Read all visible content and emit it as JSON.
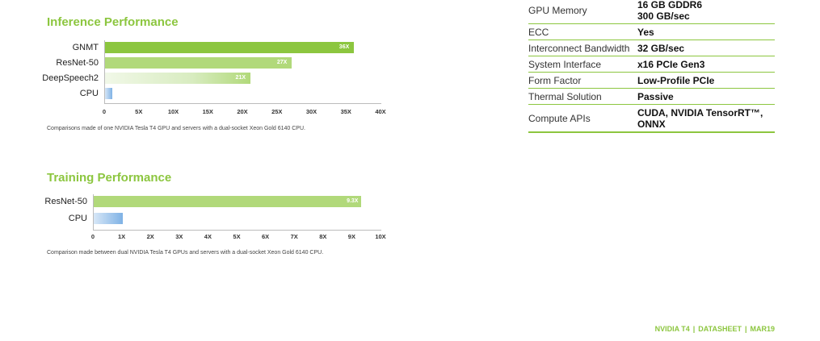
{
  "charts": [
    {
      "title": "Inference Performance",
      "note": "Comparisons made of one NVIDIA Tesla T4 GPU and servers with a dual-socket Xeon Gold 6140 CPU.",
      "chart_data": {
        "type": "bar",
        "orientation": "horizontal",
        "categories": [
          "GNMT",
          "ResNet-50",
          "DeepSpeech2",
          "CPU"
        ],
        "values": [
          36,
          27,
          21,
          1
        ],
        "value_labels": [
          "36X",
          "27X",
          "21X",
          ""
        ],
        "xlim": [
          0,
          40
        ],
        "ticks": [
          "0",
          "5X",
          "10X",
          "15X",
          "20X",
          "25X",
          "30X",
          "35X",
          "40X"
        ],
        "colors": [
          "#8cc63f",
          "#b1d97a",
          "#d8ecc0",
          "#7fb2e5"
        ]
      }
    },
    {
      "title": "Training Performance",
      "note": "Comparison made between dual NVIDIA Tesla T4 GPUs and servers with a dual-socket Xeon Gold 6140 CPU.",
      "chart_data": {
        "type": "bar",
        "orientation": "horizontal",
        "categories": [
          "ResNet-50",
          "CPU"
        ],
        "values": [
          9.3,
          1
        ],
        "value_labels": [
          "9.3X",
          ""
        ],
        "xlim": [
          0,
          10
        ],
        "ticks": [
          "0",
          "1X",
          "2X",
          "3X",
          "4X",
          "5X",
          "6X",
          "7X",
          "8X",
          "9X",
          "10X"
        ],
        "colors": [
          "#b1d97a",
          "#7fb2e5"
        ]
      }
    }
  ],
  "specs": [
    {
      "label": "GPU Memory",
      "value": [
        "16 GB GDDR6",
        "300 GB/sec"
      ]
    },
    {
      "label": "ECC",
      "value": [
        "Yes"
      ]
    },
    {
      "label": "Interconnect Bandwidth",
      "value": [
        "32 GB/sec"
      ]
    },
    {
      "label": "System Interface",
      "value": [
        "x16 PCIe Gen3"
      ]
    },
    {
      "label": "Form Factor",
      "value": [
        "Low-Profile PCIe"
      ]
    },
    {
      "label": "Thermal Solution",
      "value": [
        "Passive"
      ]
    },
    {
      "label": "Compute APIs",
      "value": [
        "CUDA, NVIDIA TensorRT™,",
        "ONNX"
      ]
    }
  ],
  "footer": {
    "product": "NVIDIA T4",
    "doc": "DATASHEET",
    "date": "MAR19",
    "separator": "|"
  }
}
